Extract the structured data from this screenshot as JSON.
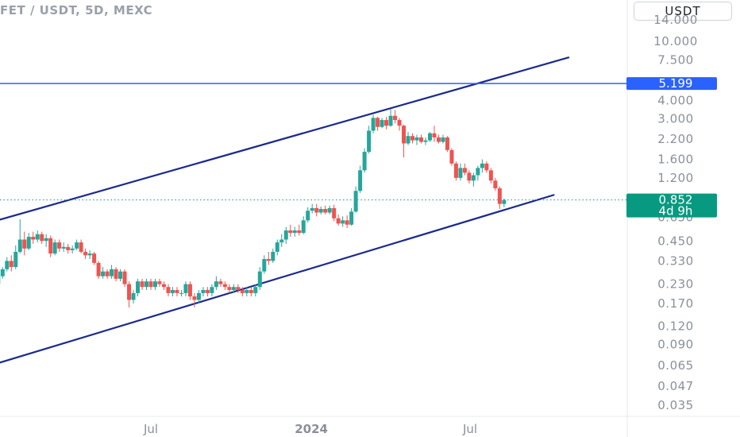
{
  "header": {
    "symbol": "FET / USDT, 5D, MEXC",
    "currency_button": "USDT"
  },
  "colors": {
    "up": "#26a69a",
    "down": "#ef5350",
    "channel": "#1a2a8c",
    "horizontal_line": "#2962ff",
    "price_tag": "#089981"
  },
  "chart_data": {
    "type": "candlestick",
    "title": "FET / USDT, 5D, MEXC",
    "scale": "log",
    "ylim": [
      0.03,
      15
    ],
    "y_ticks": [
      "14.000",
      "10.000",
      "7.500",
      "4.000",
      "3.000",
      "2.200",
      "1.600",
      "1.200",
      "0.650",
      "0.450",
      "0.330",
      "0.230",
      "0.170",
      "0.120",
      "0.090",
      "0.065",
      "0.047",
      "0.035"
    ],
    "x_ticks": [
      "Jul",
      "2024",
      "Jul"
    ],
    "horizontal_line": {
      "price": 5.199,
      "label": "5.199"
    },
    "last_price": {
      "value": 0.852,
      "label": "0.852",
      "countdown": "4d 9h"
    },
    "channel_upper": [
      [
        "2023-01-02",
        0.61
      ],
      [
        "2024-10-22",
        7.8
      ]
    ],
    "channel_lower": [
      [
        "2023-01-02",
        0.066
      ],
      [
        "2024-10-05",
        0.92
      ]
    ],
    "candles": [
      [
        "2023-01-02",
        0.19,
        0.25,
        0.18,
        0.23
      ],
      [
        "2023-01-07",
        0.23,
        0.27,
        0.22,
        0.26
      ],
      [
        "2023-01-12",
        0.26,
        0.3,
        0.25,
        0.29
      ],
      [
        "2023-01-17",
        0.29,
        0.35,
        0.28,
        0.33
      ],
      [
        "2023-01-22",
        0.33,
        0.36,
        0.28,
        0.3
      ],
      [
        "2023-01-27",
        0.3,
        0.42,
        0.29,
        0.38
      ],
      [
        "2023-02-01",
        0.38,
        0.63,
        0.37,
        0.46
      ],
      [
        "2023-02-06",
        0.46,
        0.52,
        0.36,
        0.4
      ],
      [
        "2023-02-11",
        0.4,
        0.51,
        0.39,
        0.48
      ],
      [
        "2023-02-16",
        0.48,
        0.52,
        0.43,
        0.46
      ],
      [
        "2023-02-21",
        0.46,
        0.53,
        0.44,
        0.5
      ],
      [
        "2023-02-26",
        0.5,
        0.52,
        0.43,
        0.45
      ],
      [
        "2023-03-03",
        0.45,
        0.5,
        0.41,
        0.47
      ],
      [
        "2023-03-08",
        0.47,
        0.49,
        0.35,
        0.37
      ],
      [
        "2023-03-13",
        0.37,
        0.46,
        0.36,
        0.44
      ],
      [
        "2023-03-18",
        0.44,
        0.46,
        0.38,
        0.4
      ],
      [
        "2023-03-23",
        0.4,
        0.44,
        0.38,
        0.41
      ],
      [
        "2023-03-28",
        0.41,
        0.43,
        0.37,
        0.39
      ],
      [
        "2023-04-02",
        0.39,
        0.42,
        0.37,
        0.4
      ],
      [
        "2023-04-07",
        0.4,
        0.46,
        0.39,
        0.44
      ],
      [
        "2023-04-12",
        0.44,
        0.46,
        0.37,
        0.38
      ],
      [
        "2023-04-17",
        0.38,
        0.4,
        0.34,
        0.36
      ],
      [
        "2023-04-22",
        0.36,
        0.39,
        0.34,
        0.37
      ],
      [
        "2023-04-27",
        0.37,
        0.38,
        0.31,
        0.32
      ],
      [
        "2023-05-02",
        0.32,
        0.33,
        0.25,
        0.26
      ],
      [
        "2023-05-07",
        0.26,
        0.3,
        0.25,
        0.28
      ],
      [
        "2023-05-12",
        0.28,
        0.29,
        0.25,
        0.26
      ],
      [
        "2023-05-17",
        0.26,
        0.31,
        0.25,
        0.29
      ],
      [
        "2023-05-22",
        0.29,
        0.3,
        0.24,
        0.25
      ],
      [
        "2023-05-27",
        0.25,
        0.29,
        0.24,
        0.28
      ],
      [
        "2023-06-01",
        0.28,
        0.29,
        0.22,
        0.23
      ],
      [
        "2023-06-06",
        0.23,
        0.24,
        0.16,
        0.18
      ],
      [
        "2023-06-11",
        0.18,
        0.21,
        0.17,
        0.2
      ],
      [
        "2023-06-16",
        0.2,
        0.25,
        0.19,
        0.24
      ],
      [
        "2023-06-21",
        0.24,
        0.25,
        0.21,
        0.22
      ],
      [
        "2023-06-26",
        0.22,
        0.25,
        0.21,
        0.24
      ],
      [
        "2023-07-01",
        0.24,
        0.25,
        0.21,
        0.22
      ],
      [
        "2023-07-06",
        0.22,
        0.25,
        0.21,
        0.24
      ],
      [
        "2023-07-11",
        0.24,
        0.25,
        0.22,
        0.23
      ],
      [
        "2023-07-16",
        0.23,
        0.24,
        0.21,
        0.22
      ],
      [
        "2023-07-21",
        0.22,
        0.23,
        0.19,
        0.2
      ],
      [
        "2023-07-26",
        0.2,
        0.22,
        0.19,
        0.21
      ],
      [
        "2023-07-31",
        0.21,
        0.22,
        0.19,
        0.2
      ],
      [
        "2023-08-05",
        0.2,
        0.21,
        0.19,
        0.2
      ],
      [
        "2023-08-10",
        0.2,
        0.24,
        0.19,
        0.23
      ],
      [
        "2023-08-15",
        0.23,
        0.24,
        0.18,
        0.19
      ],
      [
        "2023-08-20",
        0.19,
        0.2,
        0.16,
        0.18
      ],
      [
        "2023-08-25",
        0.18,
        0.21,
        0.17,
        0.2
      ],
      [
        "2023-08-30",
        0.2,
        0.22,
        0.19,
        0.21
      ],
      [
        "2023-09-04",
        0.21,
        0.22,
        0.19,
        0.2
      ],
      [
        "2023-09-09",
        0.2,
        0.23,
        0.19,
        0.22
      ],
      [
        "2023-09-14",
        0.22,
        0.26,
        0.21,
        0.24
      ],
      [
        "2023-09-19",
        0.24,
        0.25,
        0.22,
        0.23
      ],
      [
        "2023-09-24",
        0.23,
        0.24,
        0.21,
        0.22
      ],
      [
        "2023-09-29",
        0.22,
        0.23,
        0.2,
        0.21
      ],
      [
        "2023-10-04",
        0.21,
        0.23,
        0.2,
        0.22
      ],
      [
        "2023-10-09",
        0.22,
        0.23,
        0.2,
        0.21
      ],
      [
        "2023-10-14",
        0.21,
        0.22,
        0.19,
        0.2
      ],
      [
        "2023-10-19",
        0.2,
        0.22,
        0.19,
        0.21
      ],
      [
        "2023-10-24",
        0.21,
        0.22,
        0.19,
        0.2
      ],
      [
        "2023-10-29",
        0.2,
        0.23,
        0.19,
        0.22
      ],
      [
        "2023-11-03",
        0.22,
        0.3,
        0.21,
        0.28
      ],
      [
        "2023-11-08",
        0.28,
        0.36,
        0.27,
        0.34
      ],
      [
        "2023-11-13",
        0.34,
        0.38,
        0.31,
        0.33
      ],
      [
        "2023-11-18",
        0.33,
        0.4,
        0.32,
        0.38
      ],
      [
        "2023-11-23",
        0.38,
        0.46,
        0.36,
        0.44
      ],
      [
        "2023-11-28",
        0.44,
        0.5,
        0.41,
        0.46
      ],
      [
        "2023-12-03",
        0.46,
        0.56,
        0.43,
        0.53
      ],
      [
        "2023-12-08",
        0.53,
        0.58,
        0.48,
        0.51
      ],
      [
        "2023-12-13",
        0.51,
        0.56,
        0.48,
        0.53
      ],
      [
        "2023-12-18",
        0.53,
        0.58,
        0.49,
        0.51
      ],
      [
        "2023-12-23",
        0.51,
        0.66,
        0.5,
        0.62
      ],
      [
        "2023-12-28",
        0.62,
        0.76,
        0.6,
        0.72
      ],
      [
        "2024-01-02",
        0.72,
        0.8,
        0.69,
        0.75
      ],
      [
        "2024-01-07",
        0.75,
        0.8,
        0.66,
        0.7
      ],
      [
        "2024-01-12",
        0.7,
        0.77,
        0.68,
        0.74
      ],
      [
        "2024-01-17",
        0.74,
        0.78,
        0.68,
        0.7
      ],
      [
        "2024-01-22",
        0.7,
        0.78,
        0.68,
        0.75
      ],
      [
        "2024-01-27",
        0.75,
        0.79,
        0.61,
        0.64
      ],
      [
        "2024-02-01",
        0.64,
        0.68,
        0.57,
        0.59
      ],
      [
        "2024-02-06",
        0.59,
        0.66,
        0.56,
        0.62
      ],
      [
        "2024-02-11",
        0.62,
        0.67,
        0.55,
        0.58
      ],
      [
        "2024-02-16",
        0.58,
        0.75,
        0.57,
        0.71
      ],
      [
        "2024-02-21",
        0.71,
        1.05,
        0.7,
        0.98
      ],
      [
        "2024-02-26",
        0.98,
        1.45,
        0.95,
        1.35
      ],
      [
        "2024-03-02",
        1.35,
        1.9,
        1.3,
        1.8
      ],
      [
        "2024-03-07",
        1.8,
        2.7,
        1.75,
        2.5
      ],
      [
        "2024-03-12",
        2.5,
        3.2,
        2.4,
        3.05
      ],
      [
        "2024-03-17",
        3.05,
        3.1,
        2.5,
        2.65
      ],
      [
        "2024-03-22",
        2.65,
        3.05,
        2.6,
        2.95
      ],
      [
        "2024-03-27",
        2.95,
        3.1,
        2.55,
        2.7
      ],
      [
        "2024-04-01",
        2.7,
        3.5,
        2.65,
        3.15
      ],
      [
        "2024-04-06",
        3.15,
        3.45,
        2.8,
        2.95
      ],
      [
        "2024-04-11",
        2.95,
        3.05,
        2.5,
        2.7
      ],
      [
        "2024-04-16",
        2.7,
        2.75,
        1.65,
        2.05
      ],
      [
        "2024-04-21",
        2.05,
        2.45,
        2.0,
        2.3
      ],
      [
        "2024-04-26",
        2.3,
        2.4,
        2.05,
        2.15
      ],
      [
        "2024-05-01",
        2.15,
        2.35,
        2.0,
        2.25
      ],
      [
        "2024-05-06",
        2.25,
        2.35,
        2.05,
        2.1
      ],
      [
        "2024-05-11",
        2.1,
        2.25,
        2.0,
        2.15
      ],
      [
        "2024-05-16",
        2.15,
        2.45,
        2.1,
        2.4
      ],
      [
        "2024-05-21",
        2.4,
        2.7,
        2.1,
        2.25
      ],
      [
        "2024-05-26",
        2.25,
        2.35,
        2.05,
        2.1
      ],
      [
        "2024-05-31",
        2.1,
        2.35,
        2.05,
        2.25
      ],
      [
        "2024-06-05",
        2.25,
        2.3,
        1.8,
        1.85
      ],
      [
        "2024-06-10",
        1.85,
        1.9,
        1.45,
        1.5
      ],
      [
        "2024-06-15",
        1.5,
        1.55,
        1.15,
        1.2
      ],
      [
        "2024-06-20",
        1.2,
        1.5,
        1.15,
        1.4
      ],
      [
        "2024-06-25",
        1.4,
        1.5,
        1.25,
        1.3
      ],
      [
        "2024-06-30",
        1.3,
        1.35,
        1.1,
        1.15
      ],
      [
        "2024-07-05",
        1.15,
        1.3,
        1.05,
        1.25
      ],
      [
        "2024-07-10",
        1.25,
        1.45,
        1.15,
        1.4
      ],
      [
        "2024-07-15",
        1.4,
        1.6,
        1.3,
        1.5
      ],
      [
        "2024-07-20",
        1.5,
        1.55,
        1.3,
        1.35
      ],
      [
        "2024-07-25",
        1.35,
        1.4,
        1.1,
        1.15
      ],
      [
        "2024-07-30",
        1.15,
        1.2,
        0.98,
        1.02
      ],
      [
        "2024-08-04",
        1.02,
        1.05,
        0.74,
        0.8
      ],
      [
        "2024-08-09",
        0.8,
        0.87,
        0.76,
        0.852
      ]
    ]
  }
}
